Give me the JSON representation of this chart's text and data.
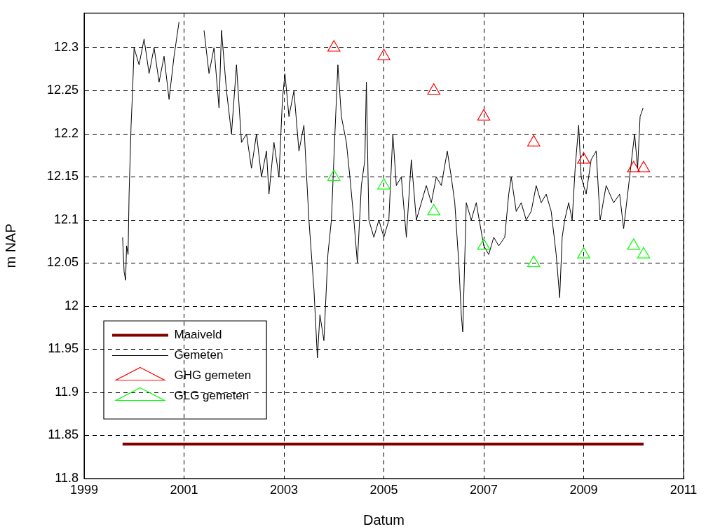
{
  "chart_data": {
    "type": "line",
    "xlabel": "Datum",
    "ylabel": "m NAP",
    "xlim": [
      1999,
      2011
    ],
    "xticks": [
      1999,
      2001,
      2003,
      2005,
      2007,
      2009,
      2011
    ],
    "ylim": [
      11.8,
      12.34
    ],
    "yticks": [
      11.8,
      11.85,
      11.9,
      11.95,
      12,
      12.05,
      12.1,
      12.15,
      12.2,
      12.25,
      12.3
    ],
    "grid": true,
    "legend": "bottom left",
    "series": [
      {
        "name": "Maaiveld",
        "type": "line",
        "color": "#800000",
        "marker": "none",
        "x": [
          1999.77,
          2010.2
        ],
        "values": [
          11.84,
          11.84
        ]
      },
      {
        "name": "Gemeten",
        "type": "line",
        "color": "#000000",
        "marker": "none",
        "x": [
          1999.77,
          1999.8,
          1999.83,
          1999.85,
          1999.88,
          1999.9,
          1999.94,
          1999.97,
          2000.0,
          2000.1,
          2000.2,
          2000.3,
          2000.4,
          2000.5,
          2000.6,
          2000.7,
          2000.8,
          2000.9,
          2001.0,
          2001.2,
          2001.4,
          2001.5,
          2001.6,
          2001.7,
          2001.75,
          2001.85,
          2001.95,
          2002.05,
          2002.15,
          2002.25,
          2002.35,
          2002.45,
          2002.55,
          2002.65,
          2002.7,
          2002.8,
          2002.9,
          2002.97,
          2003.02,
          2003.1,
          2003.2,
          2003.3,
          2003.4,
          2003.5,
          2003.6,
          2003.67,
          2003.72,
          2003.8,
          2003.88,
          2003.95,
          2004.02,
          2004.08,
          2004.15,
          2004.25,
          2004.32,
          2004.4,
          2004.47,
          2004.55,
          2004.62,
          2004.65,
          2004.7,
          2004.8,
          2004.9,
          2005.0,
          2005.1,
          2005.18,
          2005.25,
          2005.35,
          2005.45,
          2005.55,
          2005.65,
          2005.75,
          2005.85,
          2005.95,
          2006.05,
          2006.15,
          2006.27,
          2006.35,
          2006.42,
          2006.5,
          2006.55,
          2006.58,
          2006.65,
          2006.75,
          2006.85,
          2007.0,
          2007.1,
          2007.2,
          2007.3,
          2007.42,
          2007.5,
          2007.55,
          2007.65,
          2007.75,
          2007.85,
          2007.95,
          2008.05,
          2008.15,
          2008.25,
          2008.35,
          2008.45,
          2008.52,
          2008.57,
          2008.62,
          2008.7,
          2008.77,
          2008.83,
          2008.9,
          2008.95,
          2009.05,
          2009.15,
          2009.25,
          2009.33,
          2009.45,
          2009.6,
          2009.72,
          2009.8,
          2009.9,
          2010.02,
          2010.08,
          2010.13,
          2010.19
        ],
        "values": [
          12.08,
          12.04,
          12.03,
          12.07,
          12.06,
          12.13,
          12.21,
          12.25,
          12.3,
          12.28,
          12.31,
          12.27,
          12.3,
          12.26,
          12.29,
          12.24,
          12.29,
          12.33,
          null,
          null,
          12.32,
          12.27,
          12.3,
          12.23,
          12.32,
          12.25,
          12.2,
          12.28,
          12.19,
          12.2,
          12.16,
          12.2,
          12.15,
          12.18,
          12.13,
          12.19,
          12.15,
          12.24,
          12.27,
          12.22,
          12.25,
          12.18,
          12.21,
          12.1,
          12.02,
          11.94,
          11.99,
          11.96,
          12.06,
          12.1,
          12.2,
          12.28,
          12.22,
          12.19,
          12.15,
          12.1,
          12.05,
          12.14,
          12.17,
          12.26,
          12.1,
          12.08,
          12.1,
          12.08,
          12.1,
          12.2,
          12.14,
          12.15,
          12.08,
          12.17,
          12.1,
          12.12,
          12.14,
          12.12,
          12.15,
          12.14,
          12.18,
          12.15,
          12.12,
          12.05,
          11.99,
          11.97,
          12.12,
          12.1,
          12.12,
          12.07,
          12.06,
          12.08,
          12.07,
          12.08,
          12.13,
          12.15,
          12.11,
          12.12,
          12.1,
          12.11,
          12.14,
          12.12,
          12.13,
          12.11,
          12.06,
          12.01,
          12.08,
          12.1,
          12.12,
          12.1,
          12.16,
          12.21,
          12.15,
          12.13,
          12.17,
          12.18,
          12.1,
          12.14,
          12.12,
          12.13,
          12.09,
          12.14,
          12.2,
          12.16,
          12.22,
          12.23
        ]
      },
      {
        "name": "GHG gemeten",
        "type": "scatter",
        "color": "#ff0000",
        "marker": "triangle",
        "x": [
          2004,
          2005,
          2006,
          2007,
          2008,
          2009,
          2010,
          2010.2
        ],
        "values": [
          12.3,
          12.29,
          12.25,
          12.22,
          12.19,
          12.17,
          12.16,
          12.16
        ]
      },
      {
        "name": "GLG gemeten",
        "type": "scatter",
        "color": "#00ff00",
        "marker": "triangle",
        "x": [
          2004,
          2005,
          2006,
          2007,
          2008,
          2009,
          2010,
          2010.2
        ],
        "values": [
          12.15,
          12.14,
          12.11,
          12.07,
          12.05,
          12.06,
          12.07,
          12.06
        ]
      }
    ]
  }
}
